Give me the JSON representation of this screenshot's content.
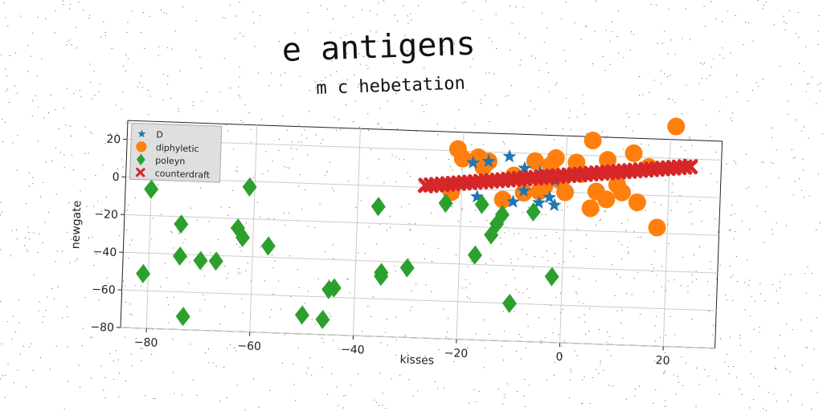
{
  "chart_data": {
    "type": "scatter",
    "title": "e antigens",
    "subtitle": "m c hebetation",
    "xlabel": "kisses",
    "ylabel": "newgate",
    "xlim": [
      -85,
      30
    ],
    "ylim": [
      -80,
      30
    ],
    "x_ticks": [
      "−80",
      "−60",
      "−40",
      "−20",
      "0",
      "20"
    ],
    "y_ticks": [
      "20",
      "0",
      "−20",
      "−40",
      "−60",
      "−80"
    ],
    "x_tick_values": [
      -80,
      -60,
      -40,
      -20,
      0,
      20
    ],
    "y_tick_values": [
      20,
      0,
      -20,
      -40,
      -60,
      -80
    ],
    "grid": true,
    "legend_position": "top-left",
    "series": [
      {
        "name": "D",
        "marker": "star",
        "color": "#1f77b4",
        "points": [
          [
            -18,
            14
          ],
          [
            -15,
            15
          ],
          [
            -11,
            18
          ],
          [
            -8,
            12
          ],
          [
            -5,
            10
          ],
          [
            -3,
            8
          ],
          [
            -2,
            6
          ],
          [
            -17,
            -4
          ],
          [
            -10,
            -6
          ],
          [
            -5,
            -6
          ],
          [
            -2,
            -7
          ],
          [
            -8,
            0
          ],
          [
            -3,
            -3
          ]
        ]
      },
      {
        "name": "diphyletic",
        "marker": "circle",
        "color": "#ff7f0e",
        "points": [
          [
            -21,
            21
          ],
          [
            -20,
            16
          ],
          [
            -17,
            17
          ],
          [
            -15,
            15
          ],
          [
            -12,
            -5
          ],
          [
            -8,
            -1
          ],
          [
            -6,
            16
          ],
          [
            -5,
            0
          ],
          [
            -3,
            14
          ],
          [
            -2,
            18
          ],
          [
            -1,
            6
          ],
          [
            0,
            0
          ],
          [
            2,
            16
          ],
          [
            3,
            10
          ],
          [
            5,
            -8
          ],
          [
            5,
            28
          ],
          [
            6,
            1
          ],
          [
            8,
            -3
          ],
          [
            8,
            18
          ],
          [
            10,
            5
          ],
          [
            11,
            1
          ],
          [
            13,
            22
          ],
          [
            14,
            -4
          ],
          [
            16,
            15
          ],
          [
            18,
            -17
          ],
          [
            21,
            37
          ],
          [
            -22,
            -2
          ],
          [
            -16,
            12
          ],
          [
            -10,
            8
          ],
          [
            -4,
            3
          ]
        ]
      },
      {
        "name": "poleyn",
        "marker": "diamond",
        "color": "#2ca02c",
        "points": [
          [
            -80,
            -6
          ],
          [
            -81,
            -51
          ],
          [
            -74,
            -24
          ],
          [
            -74,
            -41
          ],
          [
            -73,
            -73
          ],
          [
            -70,
            -43
          ],
          [
            -67,
            -43
          ],
          [
            -63,
            -25
          ],
          [
            -62,
            -30
          ],
          [
            -61,
            -3
          ],
          [
            -57,
            -34
          ],
          [
            -50,
            -70
          ],
          [
            -46,
            -72
          ],
          [
            -45,
            -56
          ],
          [
            -44,
            -55
          ],
          [
            -36,
            -11
          ],
          [
            -35,
            -46
          ],
          [
            -35,
            -48
          ],
          [
            -30,
            -43
          ],
          [
            -23,
            -8
          ],
          [
            -17,
            -35
          ],
          [
            -16,
            -8
          ],
          [
            -14,
            -24
          ],
          [
            -13,
            -18
          ],
          [
            -12,
            -13
          ],
          [
            -10,
            -60
          ],
          [
            -6,
            -11
          ],
          [
            -2,
            -45
          ]
        ]
      },
      {
        "name": "counterdraft",
        "marker": "x",
        "color": "#d62728",
        "line": [
          [
            -27,
            1
          ],
          [
            24,
            16
          ]
        ]
      }
    ]
  }
}
